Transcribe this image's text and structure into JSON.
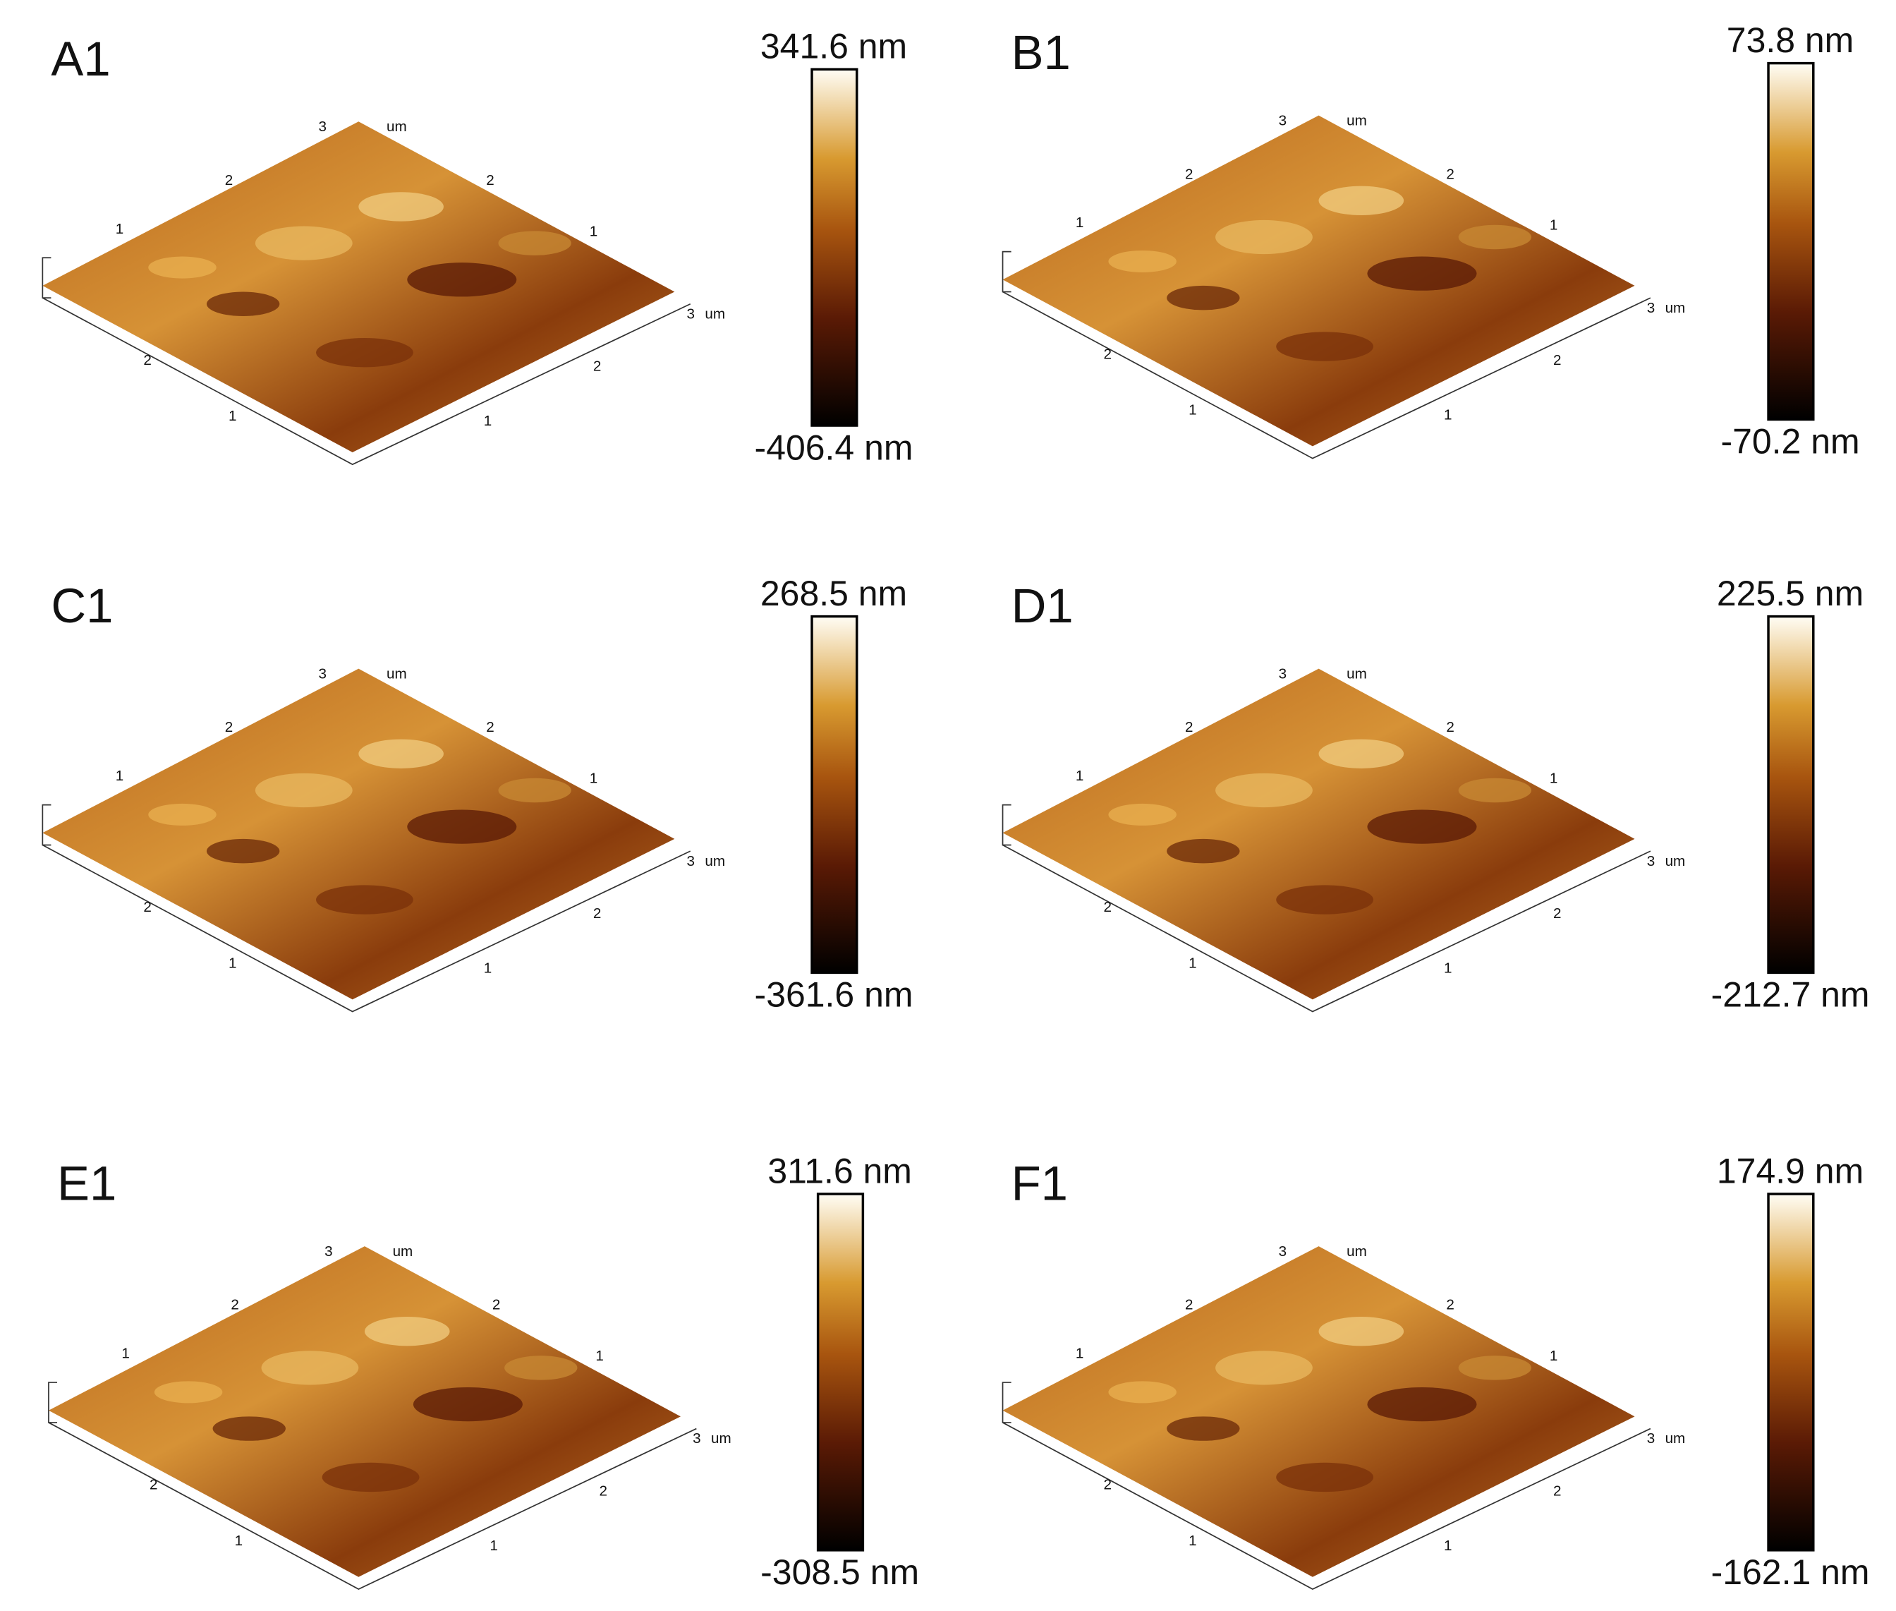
{
  "panels": [
    {
      "label": "A1",
      "max": "341.6 nm",
      "min": "-406.4 nm",
      "ticks": [
        "1",
        "2",
        "3"
      ],
      "unit": "um"
    },
    {
      "label": "B1",
      "max": "73.8 nm",
      "min": "-70.2 nm",
      "ticks": [
        "1",
        "2",
        "3"
      ],
      "unit": "um"
    },
    {
      "label": "C1",
      "max": "268.5 nm",
      "min": "-361.6 nm",
      "ticks": [
        "1",
        "2",
        "3"
      ],
      "unit": "um"
    },
    {
      "label": "D1",
      "max": "225.5 nm",
      "min": "-212.7 nm",
      "ticks": [
        "1",
        "2",
        "3"
      ],
      "unit": "um"
    },
    {
      "label": "E1",
      "max": "311.6 nm",
      "min": "-308.5 nm",
      "ticks": [
        "1",
        "2",
        "3"
      ],
      "unit": "um"
    },
    {
      "label": "F1",
      "max": "174.9 nm",
      "min": "-162.1 nm",
      "ticks": [
        "1",
        "2",
        "3"
      ],
      "unit": "um"
    }
  ]
}
